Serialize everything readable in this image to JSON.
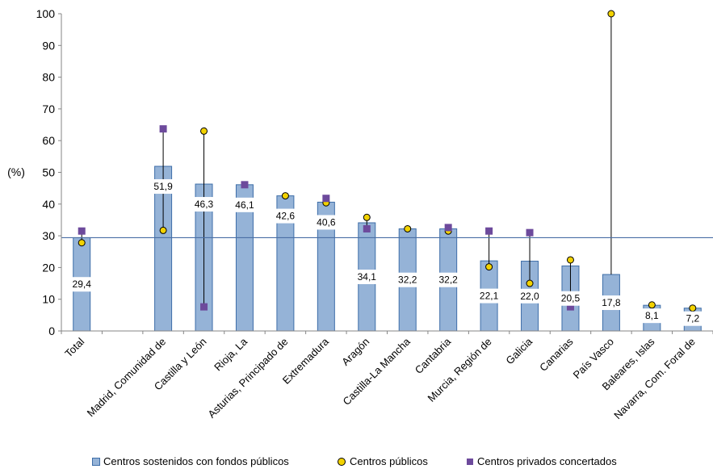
{
  "chart_data": {
    "type": "bar",
    "ylabel": "(%)",
    "ylim": [
      0,
      100
    ],
    "yticks": [
      0,
      10,
      20,
      30,
      40,
      50,
      60,
      70,
      80,
      90,
      100
    ],
    "grid": false,
    "legend_position": "bottom",
    "categories": [
      "Total",
      "",
      "Madrid, Comunidad de",
      "Castilla y León",
      "Rioja, La",
      "Asturias, Principado de",
      "Extremadura",
      "Aragón",
      "Castilla-La Mancha",
      "Cantabria",
      "Murcia, Región de",
      "Galicia",
      "Canarias",
      "País Vasco",
      "Baleares, Islas",
      "Navarra, Com. Foral de"
    ],
    "series": [
      {
        "name": "Centros sostenidos con fondos públicos",
        "type": "bar",
        "values": [
          29.4,
          null,
          51.9,
          46.3,
          46.1,
          42.6,
          40.6,
          34.1,
          32.2,
          32.2,
          22.1,
          22.0,
          20.5,
          17.8,
          8.1,
          7.2
        ],
        "labels": [
          "29,4",
          "",
          "51,9",
          "46,3",
          "46,1",
          "42,6",
          "40,6",
          "34,1",
          "32,2",
          "32,2",
          "22,1",
          "22,0",
          "20,5",
          "17,8",
          "8,1",
          "7,2"
        ],
        "color": "#95b3d7"
      },
      {
        "name": "Centros públicos",
        "type": "scatter",
        "values": [
          27.8,
          null,
          31.7,
          63.0,
          null,
          42.6,
          40.4,
          35.8,
          32.2,
          31.5,
          20.2,
          15.0,
          22.4,
          100.0,
          8.2,
          7.2
        ],
        "color": "#f2d200"
      },
      {
        "name": "Centros privados concertados",
        "type": "scatter",
        "values": [
          31.5,
          null,
          63.7,
          7.6,
          46.1,
          null,
          41.8,
          32.2,
          null,
          32.6,
          31.5,
          31.0,
          7.6,
          null,
          null,
          null
        ],
        "color": "#6d4a9c"
      }
    ],
    "reference_line": 29.4
  }
}
